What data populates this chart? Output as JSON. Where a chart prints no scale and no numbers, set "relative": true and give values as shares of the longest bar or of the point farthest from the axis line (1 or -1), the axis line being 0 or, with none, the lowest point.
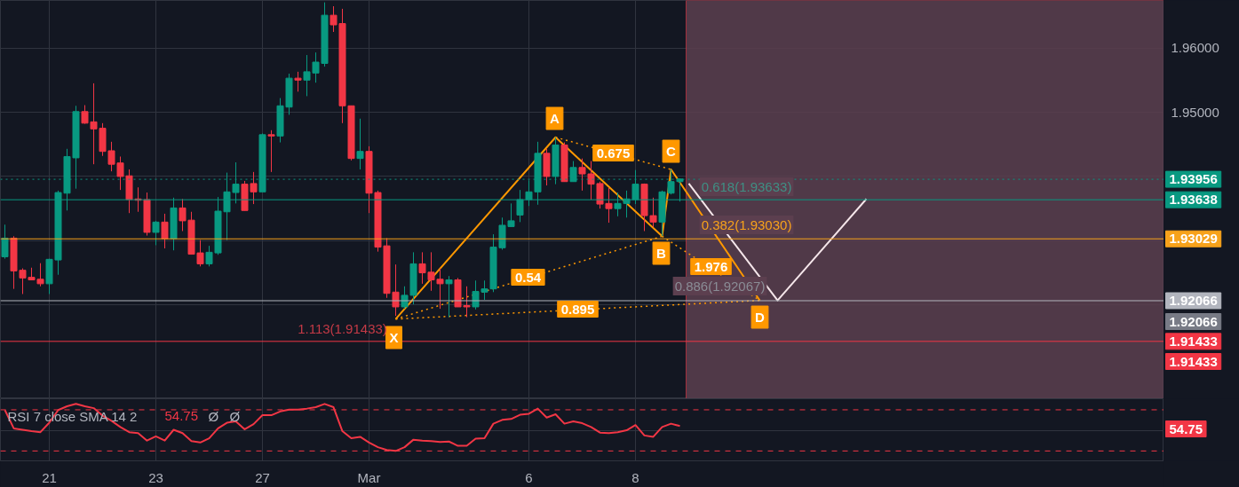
{
  "chart_data": [
    {
      "type": "candlestick",
      "grid": true,
      "tick_labels": "y",
      "categories": [
        null,
        null,
        null,
        null,
        null,
        null,
        null,
        null,
        null,
        null,
        null,
        null,
        null,
        null,
        null,
        null,
        null,
        null,
        null,
        null,
        null,
        null,
        null,
        null,
        null,
        null,
        null,
        null,
        null,
        null,
        null,
        null,
        null,
        null,
        null,
        null,
        null,
        null,
        null,
        null,
        null,
        null,
        null,
        null,
        null,
        null,
        null,
        null,
        null,
        null,
        null,
        null,
        null,
        null,
        null,
        null,
        null,
        null,
        null,
        null,
        null,
        null,
        null,
        null,
        null,
        null,
        null,
        null,
        null,
        null,
        null,
        null,
        null,
        null,
        null,
        null,
        null,
        null,
        null,
        null,
        null,
        null,
        null,
        null,
        null,
        null,
        null,
        null,
        null,
        null,
        null,
        null,
        null,
        null,
        null,
        null,
        null,
        null,
        null,
        null,
        null,
        null,
        null,
        null,
        null,
        null,
        null,
        null,
        null,
        null,
        null,
        null,
        null,
        null,
        null,
        null,
        null,
        null,
        null,
        null,
        null,
        null,
        null,
        null,
        null,
        null,
        null,
        null,
        null,
        null,
        null
      ],
      "ylim": [
        1.9054,
        1.9674
      ],
      "yticks": [
        {
          "value": 1.92,
          "label": null
        },
        {
          "value": 1.93,
          "label": null
        },
        {
          "value": 1.94,
          "label": null
        },
        {
          "value": 1.95,
          "label": "1.95000"
        },
        {
          "value": 1.96,
          "label": "1.96000"
        }
      ],
      "ohlc": [
        [
          1.9275,
          1.9325,
          1.9272,
          1.9304
        ],
        [
          1.9304,
          1.9307,
          1.9225,
          1.9253
        ],
        [
          1.9254,
          1.9257,
          1.9217,
          1.9242
        ],
        [
          1.9243,
          1.9258,
          1.9239,
          1.9239
        ],
        [
          1.924,
          1.9265,
          1.9229,
          1.9233
        ],
        [
          1.9233,
          1.9272,
          1.9217,
          1.9271
        ],
        [
          1.927,
          1.9378,
          1.9247,
          1.9375
        ],
        [
          1.9374,
          1.9443,
          1.9347,
          1.9431
        ],
        [
          1.9429,
          1.951,
          1.9381,
          1.9501
        ],
        [
          1.9501,
          1.9511,
          1.9482,
          1.9483
        ],
        [
          1.9485,
          1.9545,
          1.9419,
          1.9474
        ],
        [
          1.9475,
          1.9483,
          1.9432,
          1.9439
        ],
        [
          1.944,
          1.9454,
          1.9408,
          1.9419
        ],
        [
          1.9421,
          1.9431,
          1.9379,
          1.94
        ],
        [
          1.9401,
          1.9411,
          1.9343,
          1.9364
        ],
        [
          1.9365,
          1.9383,
          1.9345,
          1.9363
        ],
        [
          1.9364,
          1.9375,
          1.9308,
          1.9313
        ],
        [
          1.9313,
          1.9331,
          1.9293,
          1.9329
        ],
        [
          1.9329,
          1.9342,
          1.9288,
          1.9303
        ],
        [
          1.9303,
          1.9367,
          1.9285,
          1.9351
        ],
        [
          1.9351,
          1.9365,
          1.9315,
          1.9331
        ],
        [
          1.9332,
          1.9345,
          1.9279,
          1.9279
        ],
        [
          1.9281,
          1.9301,
          1.926,
          1.9264
        ],
        [
          1.9264,
          1.9292,
          1.926,
          1.9282
        ],
        [
          1.9281,
          1.9368,
          1.9278,
          1.9346
        ],
        [
          1.9345,
          1.9406,
          1.9301,
          1.9376
        ],
        [
          1.9375,
          1.9422,
          1.9358,
          1.9388
        ],
        [
          1.9388,
          1.9393,
          1.9347,
          1.9347
        ],
        [
          1.9389,
          1.9407,
          1.9357,
          1.9376
        ],
        [
          1.9376,
          1.9467,
          1.9376,
          1.9465
        ],
        [
          1.9465,
          1.9472,
          1.9407,
          1.9463
        ],
        [
          1.9463,
          1.9522,
          1.9453,
          1.951
        ],
        [
          1.9508,
          1.956,
          1.9496,
          1.9553
        ],
        [
          1.9553,
          1.9563,
          1.9532,
          1.955
        ],
        [
          1.955,
          1.9589,
          1.9525,
          1.9563
        ],
        [
          1.9561,
          1.9593,
          1.9546,
          1.9578
        ],
        [
          1.9576,
          1.9671,
          1.9571,
          1.9651
        ],
        [
          1.9651,
          1.9665,
          1.9625,
          1.9636
        ],
        [
          1.9638,
          1.9661,
          1.9483,
          1.951
        ],
        [
          1.951,
          1.951,
          1.9425,
          1.9428
        ],
        [
          1.9428,
          1.949,
          1.9411,
          1.9439
        ],
        [
          1.9439,
          1.9447,
          1.9343,
          1.9374
        ],
        [
          1.9375,
          1.9378,
          1.9283,
          1.929
        ],
        [
          1.9292,
          1.9304,
          1.9211,
          1.9218
        ],
        [
          1.922,
          1.9263,
          1.9183,
          1.9197
        ],
        [
          1.9197,
          1.9229,
          1.9194,
          1.9215
        ],
        [
          1.9215,
          1.9282,
          1.9201,
          1.9264
        ],
        [
          1.9264,
          1.9282,
          1.9233,
          1.925
        ],
        [
          1.9251,
          1.9282,
          1.9222,
          1.9239
        ],
        [
          1.924,
          1.9257,
          1.9194,
          1.9233
        ],
        [
          1.9233,
          1.9245,
          1.9181,
          1.9239
        ],
        [
          1.9239,
          1.9242,
          1.9197,
          1.9197
        ],
        [
          1.9199,
          1.9229,
          1.9181,
          1.9197
        ],
        [
          1.9197,
          1.9238,
          1.9193,
          1.9221
        ],
        [
          1.922,
          1.9238,
          1.9208,
          1.9225
        ],
        [
          1.9225,
          1.931,
          1.922,
          1.929
        ],
        [
          1.9289,
          1.9336,
          1.9286,
          1.9324
        ],
        [
          1.9322,
          1.9358,
          1.9322,
          1.9331
        ],
        [
          1.934,
          1.9379,
          1.9329,
          1.9364
        ],
        [
          1.9364,
          1.9394,
          1.9354,
          1.9376
        ],
        [
          1.9376,
          1.9454,
          1.9356,
          1.9436
        ],
        [
          1.9436,
          1.9443,
          1.9386,
          1.94
        ],
        [
          1.94,
          1.9461,
          1.9388,
          1.9449
        ],
        [
          1.9449,
          1.9453,
          1.9392,
          1.9392
        ],
        [
          1.9392,
          1.9424,
          1.9392,
          1.9414
        ],
        [
          1.9414,
          1.9428,
          1.9378,
          1.9404
        ],
        [
          1.9404,
          1.9424,
          1.9364,
          1.9388
        ],
        [
          1.9389,
          1.9392,
          1.935,
          1.9357
        ],
        [
          1.9358,
          1.9382,
          1.9328,
          1.935
        ],
        [
          1.935,
          1.9375,
          1.9338,
          1.9358
        ],
        [
          1.9358,
          1.9378,
          1.9336,
          1.9365
        ],
        [
          1.9364,
          1.941,
          1.9357,
          1.9388
        ],
        [
          1.9388,
          1.9389,
          1.9315,
          1.9339
        ],
        [
          1.9339,
          1.9367,
          1.9321,
          1.9329
        ],
        [
          1.9329,
          1.9378,
          1.9307,
          1.9376
        ],
        [
          1.9374,
          1.9411,
          1.9372,
          1.9392
        ],
        [
          1.9392,
          1.9397,
          1.9361,
          1.9396
        ],
        null,
        null,
        null,
        null,
        null,
        null,
        null,
        null,
        null,
        null,
        null,
        null,
        null,
        null,
        null,
        null,
        null,
        null,
        null,
        null,
        null,
        null,
        null,
        null,
        null,
        null,
        null,
        null,
        null,
        null,
        null,
        null,
        null,
        null,
        null,
        null,
        null,
        null,
        null,
        null,
        null,
        null,
        null,
        null,
        null,
        null,
        null,
        null,
        null,
        null,
        null,
        null,
        null,
        null
      ],
      "colors": [
        "#089981",
        "#f23645",
        "#f23645",
        "#f23645",
        "#f23645",
        "#089981",
        "#089981",
        "#089981",
        "#089981",
        "#f23645",
        "#f23645",
        "#f23645",
        "#f23645",
        "#f23645",
        "#f23645",
        "#f23645",
        "#f23645",
        "#089981",
        "#f23645",
        "#089981",
        "#f23645",
        "#f23645",
        "#f23645",
        "#089981",
        "#089981",
        "#089981",
        "#089981",
        "#f23645",
        "#f23645",
        "#089981",
        "#f23645",
        "#089981",
        "#089981",
        "#f23645",
        "#089981",
        "#089981",
        "#089981",
        "#f23645",
        "#f23645",
        "#f23645",
        "#089981",
        "#f23645",
        "#f23645",
        "#f23645",
        "#f23645",
        "#089981",
        "#089981",
        "#f23645",
        "#f23645",
        "#f23645",
        "#089981",
        "#f23645",
        "#f23645",
        "#089981",
        "#089981",
        "#089981",
        "#089981",
        "#089981",
        "#089981",
        "#089981",
        "#089981",
        "#f23645",
        "#089981",
        "#f23645",
        "#089981",
        "#f23645",
        "#f23645",
        "#f23645",
        "#f23645",
        "#089981",
        "#089981",
        "#089981",
        "#f23645",
        "#f23645",
        "#089981",
        "#089981",
        "#089981",
        null,
        null,
        null,
        null,
        null,
        null,
        null,
        null,
        null,
        null,
        null,
        null,
        null,
        null,
        null,
        null,
        null,
        null,
        null,
        null,
        null,
        null,
        null,
        null,
        null,
        null,
        null,
        null,
        null,
        null,
        null,
        null,
        null,
        null,
        null,
        null,
        null,
        null,
        null,
        null,
        null,
        null,
        null,
        null,
        null,
        null,
        null,
        null,
        null,
        null,
        null,
        null,
        null,
        null
      ],
      "series": [
        {
          "type": "line",
          "color": "#ff9800",
          "line_style": "solid",
          "values": [
            null,
            null,
            null,
            null,
            null,
            null,
            null,
            null,
            null,
            null,
            null,
            null,
            null,
            null,
            null,
            null,
            null,
            null,
            null,
            null,
            null,
            null,
            null,
            null,
            null,
            null,
            null,
            null,
            null,
            null,
            null,
            null,
            null,
            null,
            null,
            null,
            null,
            null,
            null,
            null,
            null,
            null,
            null,
            null,
            1.9178,
            null,
            null,
            null,
            null,
            null,
            null,
            null,
            null,
            null,
            null,
            null,
            null,
            null,
            null,
            null,
            null,
            null,
            1.9461,
            null,
            null,
            null,
            null,
            null,
            null,
            null,
            null,
            null,
            null,
            null,
            1.9307,
            1.9411,
            null,
            null,
            null,
            null,
            null,
            null,
            null,
            null,
            null,
            1.9207,
            null,
            null,
            null,
            null,
            null,
            null,
            null,
            null,
            null,
            null,
            null,
            null,
            null,
            null,
            null,
            null,
            null,
            null,
            null,
            null,
            null,
            null,
            null,
            null,
            null,
            null,
            null,
            null,
            null,
            null,
            null,
            null,
            null,
            null,
            null,
            null,
            null,
            null,
            null,
            null,
            null,
            null,
            null,
            null,
            null
          ]
        },
        {
          "type": "line",
          "color": "#ff9800",
          "line_style": "dotted",
          "values": [
            null,
            null,
            null,
            null,
            null,
            null,
            null,
            null,
            null,
            null,
            null,
            null,
            null,
            null,
            null,
            null,
            null,
            null,
            null,
            null,
            null,
            null,
            null,
            null,
            null,
            null,
            null,
            null,
            null,
            null,
            null,
            null,
            null,
            null,
            null,
            null,
            null,
            null,
            null,
            null,
            null,
            null,
            null,
            null,
            1.9178,
            null,
            null,
            null,
            null,
            null,
            null,
            null,
            null,
            null,
            null,
            null,
            null,
            null,
            null,
            null,
            null,
            null,
            null,
            null,
            null,
            null,
            null,
            null,
            null,
            null,
            null,
            null,
            null,
            null,
            1.9307,
            null,
            null,
            null,
            null,
            null,
            null,
            null,
            null,
            null,
            null,
            null,
            null,
            null,
            null,
            null,
            null,
            null,
            null,
            null,
            null,
            null,
            null,
            null,
            null,
            null,
            null,
            null,
            null,
            null,
            null,
            null,
            null,
            null,
            null,
            null,
            null,
            null,
            null,
            null,
            null,
            null,
            null,
            null,
            null,
            null,
            null,
            null,
            null,
            null,
            null,
            null,
            null,
            null,
            null,
            null,
            null
          ]
        },
        {
          "type": "line",
          "color": "#ff9800",
          "line_style": "dotted",
          "values": [
            null,
            null,
            null,
            null,
            null,
            null,
            null,
            null,
            null,
            null,
            null,
            null,
            null,
            null,
            null,
            null,
            null,
            null,
            null,
            null,
            null,
            null,
            null,
            null,
            null,
            null,
            null,
            null,
            null,
            null,
            null,
            null,
            null,
            null,
            null,
            null,
            null,
            null,
            null,
            null,
            null,
            null,
            null,
            null,
            null,
            null,
            null,
            null,
            null,
            null,
            null,
            null,
            null,
            null,
            null,
            null,
            null,
            null,
            null,
            null,
            null,
            null,
            1.9461,
            null,
            null,
            null,
            null,
            null,
            null,
            null,
            null,
            null,
            null,
            null,
            null,
            1.9411,
            null,
            null,
            null,
            null,
            null,
            null,
            null,
            null,
            null,
            null,
            null,
            null,
            null,
            null,
            null,
            null,
            null,
            null,
            null,
            null,
            null,
            null,
            null,
            null,
            null,
            null,
            null,
            null,
            null,
            null,
            null,
            null,
            null,
            null,
            null,
            null,
            null,
            null,
            null,
            null,
            null,
            null,
            null,
            null,
            null,
            null,
            null,
            null,
            null,
            null,
            null,
            null,
            null,
            null,
            null
          ]
        },
        {
          "type": "line",
          "color": "#ff9800",
          "line_style": "dotted",
          "values": [
            null,
            null,
            null,
            null,
            null,
            null,
            null,
            null,
            null,
            null,
            null,
            null,
            null,
            null,
            null,
            null,
            null,
            null,
            null,
            null,
            null,
            null,
            null,
            null,
            null,
            null,
            null,
            null,
            null,
            null,
            null,
            null,
            null,
            null,
            null,
            null,
            null,
            null,
            null,
            null,
            null,
            null,
            null,
            null,
            null,
            null,
            null,
            null,
            null,
            null,
            null,
            null,
            null,
            null,
            null,
            null,
            null,
            null,
            null,
            null,
            null,
            null,
            null,
            null,
            null,
            null,
            null,
            null,
            null,
            null,
            null,
            null,
            null,
            null,
            1.9307,
            null,
            null,
            null,
            null,
            null,
            null,
            null,
            null,
            null,
            null,
            1.9207,
            null,
            null,
            null,
            null,
            null,
            null,
            null,
            null,
            null,
            null,
            null,
            null,
            null,
            null,
            null,
            null,
            null,
            null,
            null,
            null,
            null,
            null,
            null,
            null,
            null,
            null,
            null,
            null,
            null,
            null,
            null,
            null,
            null,
            null,
            null,
            null,
            null,
            null,
            null,
            null,
            null,
            null,
            null,
            null,
            null
          ]
        },
        {
          "type": "line",
          "color": "#ff9800",
          "line_style": "dotted",
          "values": [
            null,
            null,
            null,
            null,
            null,
            null,
            null,
            null,
            null,
            null,
            null,
            null,
            null,
            null,
            null,
            null,
            null,
            null,
            null,
            null,
            null,
            null,
            null,
            null,
            null,
            null,
            null,
            null,
            null,
            null,
            null,
            null,
            null,
            null,
            null,
            null,
            null,
            null,
            null,
            null,
            null,
            null,
            null,
            null,
            1.9178,
            null,
            null,
            null,
            null,
            null,
            null,
            null,
            null,
            null,
            null,
            null,
            null,
            null,
            null,
            null,
            null,
            null,
            null,
            null,
            null,
            null,
            null,
            null,
            null,
            null,
            null,
            null,
            null,
            null,
            null,
            null,
            null,
            null,
            null,
            null,
            null,
            null,
            null,
            null,
            null,
            1.9207,
            null,
            null,
            null,
            null,
            null,
            null,
            null,
            null,
            null,
            null,
            null,
            null,
            null,
            null,
            null,
            null,
            null,
            null,
            null,
            null,
            null,
            null,
            null,
            null,
            null,
            null,
            null,
            null,
            null,
            null,
            null,
            null,
            null,
            null,
            null,
            null,
            null,
            null,
            null,
            null,
            null,
            null,
            null,
            null,
            null
          ]
        },
        {
          "type": "line",
          "color": "#f5e6ea",
          "line_style": "solid",
          "values": [
            null,
            null,
            null,
            null,
            null,
            null,
            null,
            null,
            null,
            null,
            null,
            null,
            null,
            null,
            null,
            null,
            null,
            null,
            null,
            null,
            null,
            null,
            null,
            null,
            null,
            null,
            null,
            null,
            null,
            null,
            null,
            null,
            null,
            null,
            null,
            null,
            null,
            null,
            null,
            null,
            null,
            null,
            null,
            null,
            null,
            null,
            null,
            null,
            null,
            null,
            null,
            null,
            null,
            null,
            null,
            null,
            null,
            null,
            null,
            null,
            null,
            null,
            null,
            null,
            null,
            null,
            null,
            null,
            null,
            null,
            null,
            null,
            null,
            null,
            null,
            null,
            null,
            1.9389,
            null,
            null,
            null,
            null,
            null,
            null,
            null,
            null,
            null,
            1.9207,
            null,
            null,
            null,
            null,
            null,
            null,
            null,
            null,
            null,
            1.9365,
            null,
            null,
            null,
            null,
            null,
            null,
            null,
            null,
            null,
            null,
            null,
            null,
            null,
            null,
            null,
            null,
            null,
            null,
            null,
            null,
            null,
            null,
            null,
            null,
            null,
            null,
            null,
            null,
            null,
            null,
            null,
            null,
            null
          ]
        }
      ],
      "ref_lines": [
        {
          "axis": "y",
          "value": 1.93956,
          "label": "1.93956",
          "color": "#089981",
          "line_style": "dotted"
        },
        {
          "axis": "y",
          "value": 1.93638,
          "label": "1.93638",
          "color": "#089981"
        },
        {
          "axis": "y",
          "value": 1.93029,
          "label": "1.93029",
          "color": "#f7a21b"
        },
        {
          "axis": "y",
          "value": 1.92066,
          "label": "1.92066",
          "color": "#b2b5be"
        },
        {
          "axis": "y",
          "value": 1.91433,
          "label": "1.91433",
          "color": "#f23645"
        }
      ],
      "annotations": [
        "X",
        "A",
        "B",
        "C",
        "D",
        "0.54",
        "0.675",
        "1.976",
        "0.895",
        "1.113(1.91433)",
        "0.886(1.92067)",
        "0.618(1.93633)",
        "0.382(1.93030)",
        "1.92066",
        "1.91433"
      ]
    },
    {
      "type": "line",
      "relative": true,
      "grid": true,
      "tick_labels": "x",
      "color": "#f23645",
      "title": "RSI 7 close SMA 14 2",
      "annotations": [
        "54.75",
        "Ø",
        "Ø",
        "54.75"
      ],
      "categories": [
        null,
        null,
        null,
        null,
        null,
        "21",
        null,
        null,
        null,
        null,
        null,
        null,
        null,
        null,
        null,
        null,
        null,
        "23",
        null,
        null,
        null,
        null,
        null,
        null,
        null,
        null,
        null,
        null,
        null,
        "27",
        null,
        null,
        null,
        null,
        null,
        null,
        null,
        null,
        null,
        null,
        null,
        "Mar",
        null,
        null,
        null,
        null,
        null,
        null,
        null,
        null,
        null,
        null,
        null,
        null,
        null,
        null,
        null,
        null,
        null,
        "6",
        null,
        null,
        null,
        null,
        null,
        null,
        null,
        null,
        null,
        null,
        null,
        "8",
        null,
        null,
        null,
        null,
        null,
        null,
        null,
        null,
        null,
        null,
        null,
        null,
        null,
        null,
        null,
        null,
        null,
        null,
        null,
        null,
        null,
        null,
        null,
        null,
        null,
        null,
        null,
        null,
        null,
        null,
        null,
        null,
        null,
        null,
        null,
        null,
        null,
        null,
        null,
        null,
        null,
        null,
        null,
        null,
        null,
        null,
        null,
        null,
        null,
        null,
        null,
        null,
        null,
        null,
        null,
        null,
        null,
        null,
        null
      ],
      "ref_lines": [
        {
          "axis": "y",
          "value": 0.875,
          "color": "#f23645",
          "line_style": "dashed"
        },
        {
          "axis": "y",
          "value": 0,
          "color": "#f23645",
          "line_style": "dashed"
        }
      ],
      "values": [
        0.87,
        0.48,
        0.45,
        0.42,
        0.4,
        0.6,
        0.87,
        0.95,
        1.0,
        0.95,
        0.91,
        0.75,
        0.64,
        0.51,
        0.4,
        0.38,
        0.22,
        0.31,
        0.22,
        0.45,
        0.38,
        0.21,
        0.18,
        0.27,
        0.48,
        0.6,
        0.63,
        0.46,
        0.57,
        0.76,
        0.76,
        0.84,
        0.88,
        0.88,
        0.9,
        0.93,
        1.0,
        0.93,
        0.42,
        0.27,
        0.3,
        0.18,
        0.08,
        0.02,
        0,
        0.08,
        0.24,
        0.22,
        0.21,
        0.19,
        0.2,
        0.11,
        0.11,
        0.26,
        0.27,
        0.58,
        0.66,
        0.68,
        0.77,
        0.79,
        0.9,
        0.71,
        0.78,
        0.58,
        0.63,
        0.59,
        0.51,
        0.39,
        0.38,
        0.4,
        0.44,
        0.55,
        0.33,
        0.3,
        0.51,
        0.58,
        0.53,
        null,
        null,
        null,
        null,
        null,
        null,
        null,
        null,
        null,
        null,
        null,
        null,
        null,
        null,
        null,
        null,
        null,
        null,
        null,
        null,
        null,
        null,
        null,
        null,
        null,
        null,
        null,
        null,
        null,
        null,
        null,
        null,
        null,
        null,
        null,
        null,
        null,
        null,
        null,
        null,
        null,
        null,
        null,
        null,
        null,
        null,
        null,
        null,
        null,
        null,
        null,
        null,
        null,
        null
      ]
    }
  ]
}
